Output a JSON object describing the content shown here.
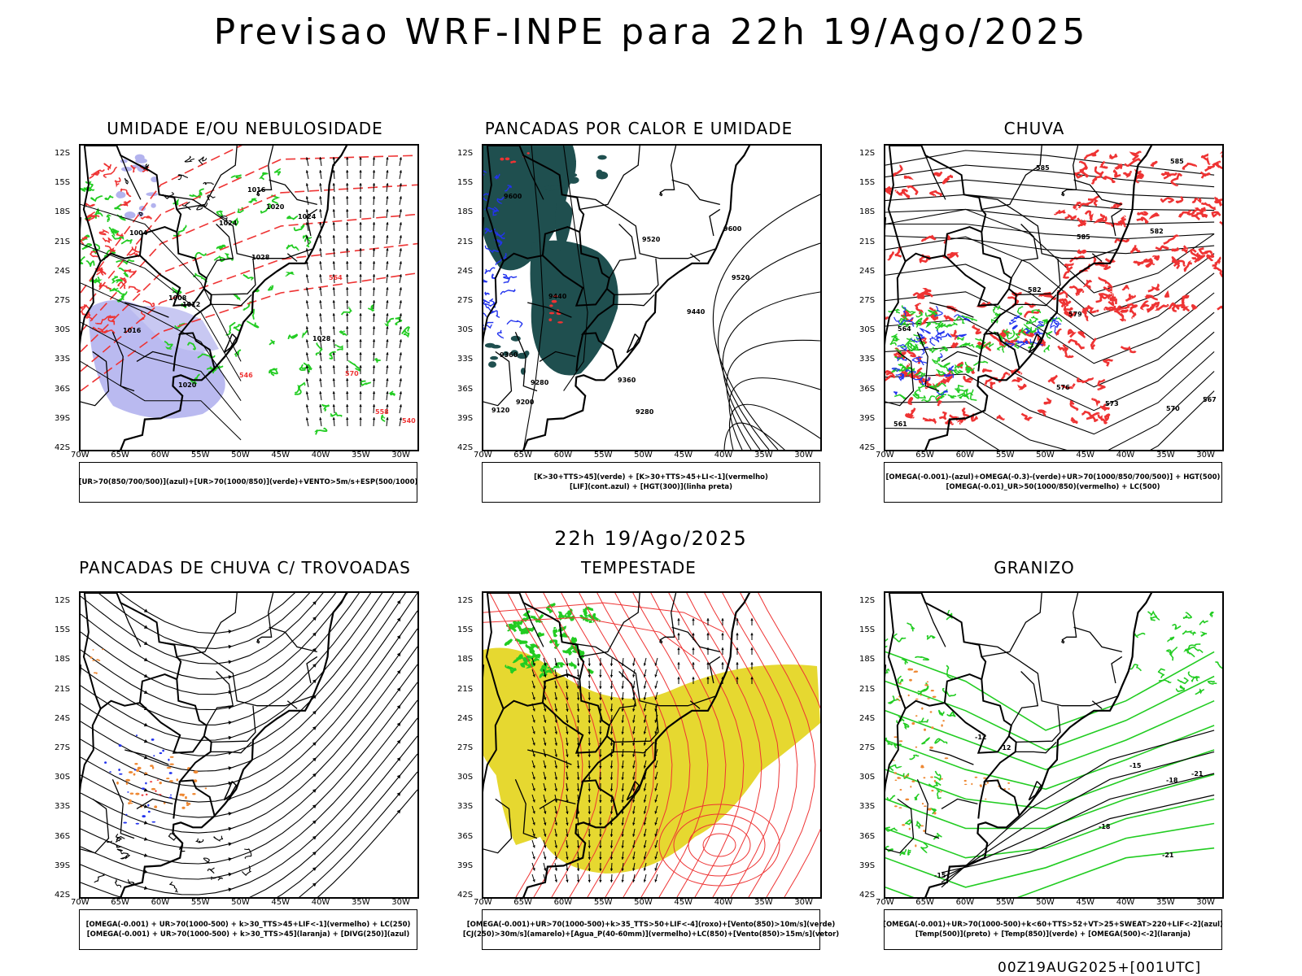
{
  "header": {
    "title": "Previsao WRF-INPE  para 22h 19/Ago/2025",
    "mid_time": "22h 19/Ago/2025",
    "footer": "00Z19AUG2025+[001UTC]"
  },
  "axes": {
    "lat_labels": [
      "12S",
      "15S",
      "18S",
      "21S",
      "24S",
      "27S",
      "30S",
      "33S",
      "36S",
      "39S",
      "42S"
    ],
    "lon_labels": [
      "70W",
      "65W",
      "60W",
      "55W",
      "50W",
      "45W",
      "40W",
      "35W",
      "30W"
    ]
  },
  "colors": {
    "red": "#ee3333",
    "green": "#22cc22",
    "blue": "#2233ee",
    "purple_fill": "#b3b3ee",
    "teal_fill": "#1f4f4f",
    "yellow_fill": "#e6d830",
    "orange": "#ee8833",
    "black": "#000000"
  },
  "panels": [
    {
      "id": "umidade",
      "title": "UMIDADE E/OU NEBULOSIDADE",
      "legend": [
        "[UR>70(850/700/500)](azul)+[UR>70(1000/850)](verde)+VENTO>5m/s+ESP(500/1000)"
      ],
      "contour_labels": [
        "1016",
        "1020",
        "1024",
        "1028",
        "1004",
        "1008",
        "1012",
        "1016",
        "1020",
        "1024",
        "1028",
        "570",
        "564",
        "558",
        "546",
        "540"
      ]
    },
    {
      "id": "pancadas_calor",
      "title": "PANCADAS POR CALOR E UMIDADE",
      "legend": [
        "[K>30+TTS>45](verde) + [K>30+TTS>45+LI<-1](vermelho)",
        "[LIF](cont.azul) + [HGT(300)](linha preta)"
      ],
      "contour_labels": [
        "9600",
        "9520",
        "9440",
        "9360",
        "9280",
        "9440",
        "9360",
        "9200",
        "9120",
        "9280",
        "9520",
        "9600"
      ]
    },
    {
      "id": "chuva",
      "title": "CHUVA",
      "legend": [
        "[OMEGA(-0.001)-(azul)+OMEGA(-0.3)-(verde)+UR>70(1000/850/700/500)] + HGT(500)",
        "[OMEGA(-0.01)_UR>50(1000/850)(vermelho) + LC(500)"
      ],
      "contour_labels": [
        "585",
        "585",
        "582",
        "579",
        "576",
        "573",
        "570",
        "567",
        "564",
        "561",
        "582",
        "585"
      ]
    },
    {
      "id": "pancadas_trovoadas",
      "title": "PANCADAS DE CHUVA C/ TROVOADAS",
      "legend": [
        "[OMEGA(-0.001) + UR>70(1000-500) + k>30_TTS>45+LIF<-1](vermelho) + LC(250)",
        "[OMEGA(-0.001) + UR>70(1000-500) + k>30_TTS>45](laranja) + [DIVG(250)](azul)"
      ],
      "contour_labels": []
    },
    {
      "id": "tempestade",
      "title": "TEMPESTADE",
      "legend": [
        "[OMEGA(-0.001)+UR>70(1000-500)+k>35_TTS>50+LIF<-4](roxo)+[Vento(850)>10m/s](verde)",
        "[CJ(250)>30m/s](amarelo)+[Agua_P(40-60mm)](vermelho)+LC(850)+[Vento(850)>15m/s](vetor)"
      ],
      "contour_labels": []
    },
    {
      "id": "granizo",
      "title": "GRANIZO",
      "legend": [
        "[OMEGA(-0.001)+UR>70(1000-500)+k<60+TTS>52+VT>25+SWEAT>220+LIF<-2](azul)",
        "[Temp(500)](preto) + [Temp(850)](verde) + [OMEGA(500)<-2](laranja)"
      ],
      "contour_labels": [
        "-12",
        "-15",
        "-18",
        "-21",
        "-18",
        "-21",
        "-15",
        "-12"
      ]
    }
  ]
}
